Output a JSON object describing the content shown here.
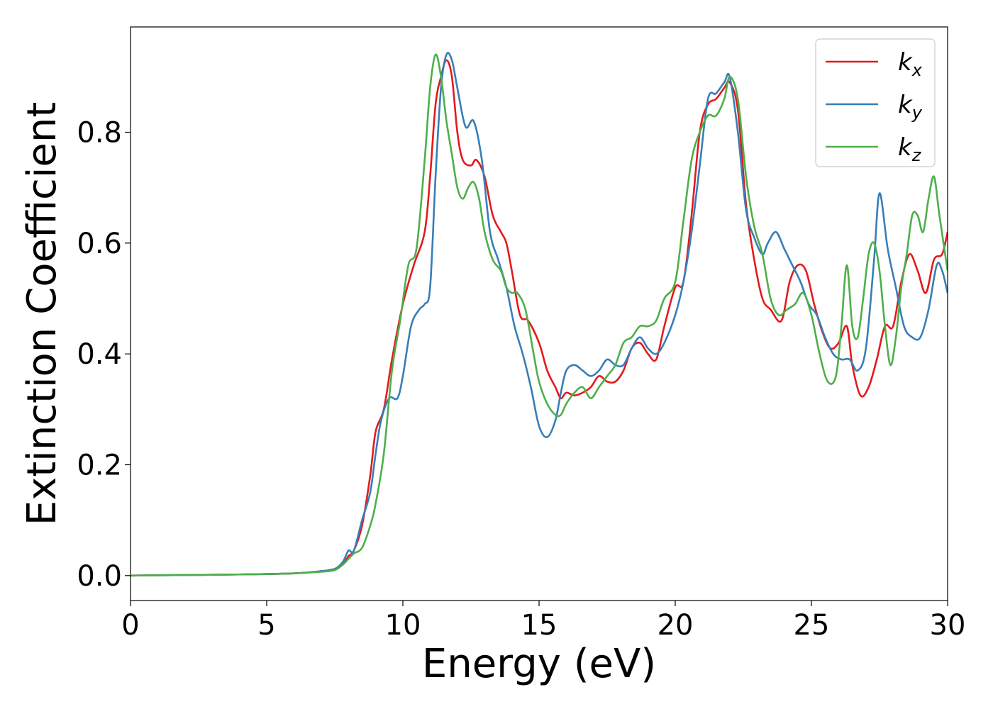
{
  "chart_data": {
    "type": "line",
    "xlabel": "Energy (eV)",
    "ylabel": "Extinction Coefficient",
    "xlim": [
      0,
      30
    ],
    "ylim": [
      -0.045,
      0.99
    ],
    "xticks": [
      0,
      5,
      10,
      15,
      20,
      25,
      30
    ],
    "xtick_labels": [
      "0",
      "5",
      "10",
      "15",
      "20",
      "25",
      "30"
    ],
    "yticks": [
      0.0,
      0.2,
      0.4,
      0.6,
      0.8
    ],
    "ytick_labels": [
      "0.0",
      "0.2",
      "0.4",
      "0.6",
      "0.8"
    ],
    "grid": false,
    "legend_position": "top-right",
    "series": [
      {
        "name": "k",
        "subscript": "x",
        "color": "#e41a1c",
        "x": [
          0,
          2,
          4,
          6,
          7,
          7.5,
          7.8,
          8.0,
          8.2,
          8.5,
          8.8,
          9.0,
          9.3,
          9.6,
          10.0,
          10.4,
          10.8,
          11.0,
          11.2,
          11.4,
          11.6,
          11.8,
          12.0,
          12.2,
          12.5,
          12.7,
          13.0,
          13.3,
          13.6,
          13.8,
          14.0,
          14.3,
          14.6,
          15.0,
          15.3,
          15.6,
          15.8,
          16.0,
          16.3,
          16.6,
          16.9,
          17.2,
          17.5,
          17.8,
          18.1,
          18.4,
          18.7,
          19.0,
          19.3,
          19.6,
          20.0,
          20.3,
          20.6,
          20.9,
          21.2,
          21.5,
          21.8,
          22.0,
          22.3,
          22.6,
          22.9,
          23.2,
          23.5,
          23.9,
          24.2,
          24.5,
          24.8,
          25.1,
          25.4,
          25.7,
          26.0,
          26.3,
          26.5,
          26.8,
          27.1,
          27.4,
          27.7,
          28.0,
          28.3,
          28.6,
          28.9,
          29.2,
          29.5,
          29.8,
          30.0
        ],
        "y": [
          0,
          0.001,
          0.002,
          0.004,
          0.008,
          0.012,
          0.02,
          0.035,
          0.045,
          0.09,
          0.18,
          0.26,
          0.3,
          0.39,
          0.49,
          0.56,
          0.62,
          0.72,
          0.85,
          0.9,
          0.93,
          0.9,
          0.8,
          0.75,
          0.74,
          0.75,
          0.72,
          0.65,
          0.62,
          0.6,
          0.55,
          0.47,
          0.46,
          0.42,
          0.37,
          0.34,
          0.32,
          0.33,
          0.325,
          0.33,
          0.34,
          0.36,
          0.35,
          0.35,
          0.37,
          0.41,
          0.42,
          0.4,
          0.39,
          0.45,
          0.52,
          0.53,
          0.65,
          0.8,
          0.85,
          0.86,
          0.88,
          0.89,
          0.84,
          0.67,
          0.57,
          0.5,
          0.48,
          0.46,
          0.53,
          0.56,
          0.55,
          0.49,
          0.44,
          0.41,
          0.42,
          0.45,
          0.38,
          0.325,
          0.34,
          0.39,
          0.45,
          0.45,
          0.53,
          0.58,
          0.55,
          0.51,
          0.57,
          0.58,
          0.62
        ]
      },
      {
        "name": "k",
        "subscript": "y",
        "color": "#377eb8",
        "x": [
          0,
          2,
          4,
          6,
          7,
          7.5,
          7.8,
          8.0,
          8.2,
          8.5,
          8.8,
          9.0,
          9.2,
          9.5,
          9.8,
          10.0,
          10.3,
          10.6,
          10.8,
          11.0,
          11.2,
          11.4,
          11.6,
          11.8,
          12.0,
          12.3,
          12.6,
          12.9,
          13.2,
          13.5,
          13.8,
          14.1,
          14.4,
          14.7,
          15.0,
          15.3,
          15.6,
          15.8,
          16.0,
          16.3,
          16.6,
          16.9,
          17.2,
          17.5,
          17.8,
          18.1,
          18.4,
          18.7,
          19.0,
          19.3,
          19.6,
          20.0,
          20.3,
          20.6,
          20.9,
          21.2,
          21.5,
          21.8,
          22.0,
          22.3,
          22.6,
          22.9,
          23.2,
          23.4,
          23.7,
          24.0,
          24.3,
          24.6,
          24.9,
          25.2,
          25.5,
          25.8,
          26.1,
          26.4,
          26.7,
          27.0,
          27.3,
          27.5,
          27.8,
          28.1,
          28.4,
          28.7,
          29.0,
          29.3,
          29.6,
          29.8,
          30.0
        ],
        "y": [
          0,
          0.001,
          0.002,
          0.004,
          0.008,
          0.012,
          0.025,
          0.045,
          0.045,
          0.1,
          0.15,
          0.22,
          0.28,
          0.32,
          0.32,
          0.36,
          0.45,
          0.48,
          0.49,
          0.52,
          0.72,
          0.88,
          0.94,
          0.93,
          0.88,
          0.81,
          0.82,
          0.75,
          0.62,
          0.57,
          0.52,
          0.45,
          0.4,
          0.34,
          0.27,
          0.25,
          0.28,
          0.33,
          0.37,
          0.38,
          0.37,
          0.36,
          0.37,
          0.39,
          0.38,
          0.38,
          0.41,
          0.43,
          0.41,
          0.4,
          0.42,
          0.47,
          0.53,
          0.62,
          0.74,
          0.86,
          0.87,
          0.89,
          0.9,
          0.8,
          0.66,
          0.61,
          0.58,
          0.6,
          0.62,
          0.59,
          0.56,
          0.53,
          0.49,
          0.47,
          0.43,
          0.4,
          0.39,
          0.39,
          0.37,
          0.41,
          0.57,
          0.69,
          0.59,
          0.52,
          0.45,
          0.43,
          0.43,
          0.48,
          0.56,
          0.55,
          0.51
        ]
      },
      {
        "name": "k",
        "subscript": "z",
        "color": "#4daf4a",
        "x": [
          0,
          2,
          4,
          6,
          7,
          7.5,
          7.8,
          8.0,
          8.2,
          8.5,
          8.8,
          9.0,
          9.3,
          9.6,
          9.9,
          10.2,
          10.5,
          10.8,
          11.0,
          11.2,
          11.4,
          11.6,
          11.8,
          12.0,
          12.2,
          12.4,
          12.6,
          12.8,
          13.0,
          13.3,
          13.6,
          13.8,
          14.0,
          14.2,
          14.5,
          14.8,
          15.0,
          15.3,
          15.6,
          15.8,
          16.0,
          16.3,
          16.6,
          16.9,
          17.2,
          17.5,
          17.8,
          18.1,
          18.4,
          18.7,
          19.0,
          19.3,
          19.6,
          20.0,
          20.3,
          20.6,
          20.9,
          21.2,
          21.5,
          21.8,
          22.0,
          22.3,
          22.6,
          22.9,
          23.2,
          23.5,
          23.8,
          24.1,
          24.4,
          24.7,
          25.0,
          25.3,
          25.6,
          25.9,
          26.1,
          26.3,
          26.5,
          26.7,
          26.9,
          27.1,
          27.3,
          27.5,
          27.7,
          27.9,
          28.1,
          28.3,
          28.5,
          28.7,
          28.9,
          29.1,
          29.3,
          29.5,
          29.7,
          30.0
        ],
        "y": [
          0,
          0.001,
          0.002,
          0.004,
          0.007,
          0.01,
          0.02,
          0.03,
          0.04,
          0.05,
          0.09,
          0.13,
          0.22,
          0.37,
          0.46,
          0.56,
          0.59,
          0.75,
          0.88,
          0.94,
          0.9,
          0.82,
          0.76,
          0.7,
          0.68,
          0.7,
          0.71,
          0.68,
          0.62,
          0.57,
          0.55,
          0.52,
          0.51,
          0.51,
          0.48,
          0.4,
          0.35,
          0.31,
          0.29,
          0.29,
          0.31,
          0.33,
          0.34,
          0.32,
          0.34,
          0.36,
          0.38,
          0.42,
          0.43,
          0.45,
          0.45,
          0.46,
          0.5,
          0.53,
          0.64,
          0.75,
          0.8,
          0.83,
          0.83,
          0.86,
          0.9,
          0.86,
          0.72,
          0.63,
          0.58,
          0.5,
          0.47,
          0.48,
          0.49,
          0.51,
          0.47,
          0.4,
          0.35,
          0.36,
          0.45,
          0.56,
          0.45,
          0.43,
          0.5,
          0.58,
          0.6,
          0.55,
          0.45,
          0.38,
          0.43,
          0.52,
          0.58,
          0.65,
          0.65,
          0.62,
          0.68,
          0.72,
          0.65,
          0.55
        ]
      }
    ]
  }
}
